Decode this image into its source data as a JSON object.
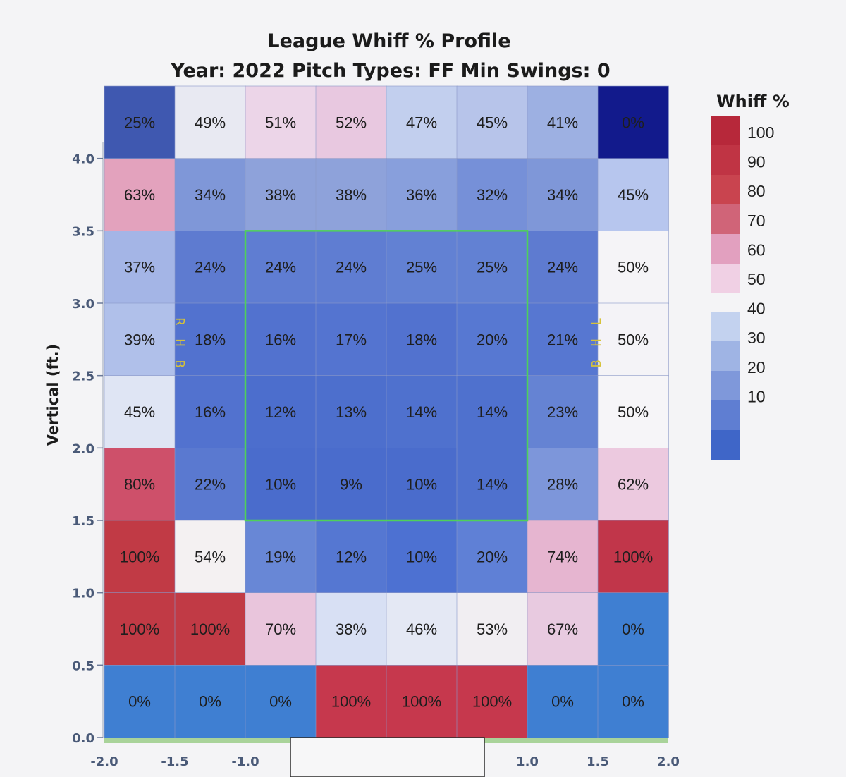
{
  "chart_data": {
    "type": "heatmap",
    "title": "League Whiff % Profile",
    "subtitle": "Year: 2022 Pitch Types: FF Min Swings: 0",
    "ylabel": "Vertical (ft.)",
    "xlabel": "",
    "x_ticks": [
      "-2.0",
      "-1.5",
      "-1.0",
      "1.0",
      "1.5",
      "2.0"
    ],
    "y_ticks": [
      "4.0",
      "3.5",
      "3.0",
      "2.5",
      "2.0",
      "1.5",
      "1.0",
      "0.5",
      "0.0"
    ],
    "x_range": [
      -2.0,
      2.0
    ],
    "y_range": [
      0.0,
      4.5
    ],
    "strike_zone": {
      "x": [
        -1.0,
        1.0
      ],
      "y": [
        1.5,
        3.5
      ]
    },
    "batter_labels": {
      "left": "RHB",
      "right": "LHB"
    },
    "legend": {
      "title": "Whiff %",
      "ticks": [
        "100",
        "90",
        "80",
        "70",
        "60",
        "50",
        "40",
        "30",
        "20",
        "10"
      ]
    },
    "values": [
      [
        25,
        49,
        51,
        52,
        47,
        45,
        41,
        0
      ],
      [
        63,
        34,
        38,
        38,
        36,
        32,
        34,
        45
      ],
      [
        37,
        24,
        24,
        24,
        25,
        25,
        24,
        50
      ],
      [
        39,
        18,
        16,
        17,
        18,
        20,
        21,
        50
      ],
      [
        45,
        16,
        12,
        13,
        14,
        14,
        23,
        50
      ],
      [
        80,
        22,
        10,
        9,
        10,
        14,
        28,
        62
      ],
      [
        100,
        54,
        19,
        12,
        10,
        20,
        74,
        100
      ],
      [
        100,
        100,
        70,
        38,
        46,
        53,
        67,
        0
      ],
      [
        0,
        0,
        0,
        100,
        100,
        100,
        0,
        0
      ]
    ],
    "labels": [
      [
        "25%",
        "49%",
        "51%",
        "52%",
        "47%",
        "45%",
        "41%",
        "0%"
      ],
      [
        "63%",
        "34%",
        "38%",
        "38%",
        "36%",
        "32%",
        "34%",
        "45%"
      ],
      [
        "37%",
        "24%",
        "24%",
        "24%",
        "25%",
        "25%",
        "24%",
        "50%"
      ],
      [
        "39%",
        "18%",
        "16%",
        "17%",
        "18%",
        "20%",
        "21%",
        "50%"
      ],
      [
        "45%",
        "16%",
        "12%",
        "13%",
        "14%",
        "14%",
        "23%",
        "50%"
      ],
      [
        "80%",
        "22%",
        "10%",
        "9%",
        "10%",
        "14%",
        "28%",
        "62%"
      ],
      [
        "100%",
        "54%",
        "19%",
        "12%",
        "10%",
        "20%",
        "74%",
        "100%"
      ],
      [
        "100%",
        "100%",
        "70%",
        "38%",
        "46%",
        "53%",
        "67%",
        "0%"
      ],
      [
        "0%",
        "0%",
        "0%",
        "100%",
        "100%",
        "100%",
        "0%",
        "0%"
      ]
    ],
    "cell_colors": [
      [
        "#3f58b0",
        "#e8e9f2",
        "#ecd5e8",
        "#e8c8e0",
        "#c2cfee",
        "#b7c4ea",
        "#9db0e2",
        "#121a8c"
      ],
      [
        "#e3a2bd",
        "#7f97d8",
        "#8ea2da",
        "#8ea2da",
        "#889fdc",
        "#7690d8",
        "#7f97d8",
        "#b7c6ee"
      ],
      [
        "#a4b5e6",
        "#5e7bd0",
        "#5f7dd2",
        "#5f7dd2",
        "#6281d3",
        "#6281d3",
        "#5e7bd0",
        "#f5f4f7"
      ],
      [
        "#b0c0ea",
        "#5272cf",
        "#5272cf",
        "#5474d0",
        "#5272cf",
        "#5778d2",
        "#5777d1",
        "#f4f3f7"
      ],
      [
        "#dfe5f4",
        "#5272cf",
        "#4c6ecd",
        "#4d6fcd",
        "#4f71ce",
        "#4f71ce",
        "#6583d3",
        "#f6f5f8"
      ],
      [
        "#ce506a",
        "#5a79d0",
        "#4a6ccc",
        "#4a6ccc",
        "#4a6ccc",
        "#4f71ce",
        "#7d96da",
        "#ecc9df"
      ],
      [
        "#c13a45",
        "#f4f1f2",
        "#6887d6",
        "#5577d2",
        "#4d71d2",
        "#5f80d6",
        "#e6b5d0",
        "#c1364a"
      ],
      [
        "#c13a45",
        "#c13a45",
        "#e9c5dc",
        "#d8e0f4",
        "#e4e8f4",
        "#f1eef2",
        "#e8cae0",
        "#3f7fd2"
      ],
      [
        "#3f7fd2",
        "#3f7fd2",
        "#3f7fd2",
        "#c6384d",
        "#c6384d",
        "#c6384d",
        "#3f7fd2",
        "#3f7fd2"
      ]
    ],
    "legend_colors": {
      "reds": [
        "#b7283a",
        "#c03444",
        "#c9444f",
        "#d06478",
        "#e2a0bf",
        "#f0d0e4"
      ],
      "blues": [
        "#c3d2ef",
        "#9fb4e4",
        "#7f98da",
        "#5f7ed2",
        "#3f66c8"
      ]
    }
  }
}
